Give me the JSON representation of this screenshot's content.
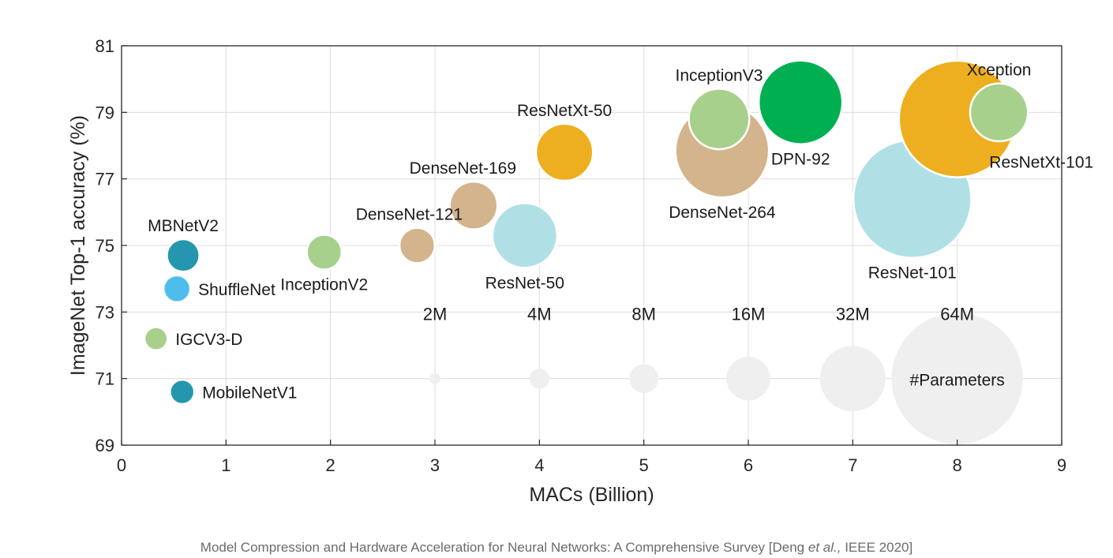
{
  "chart_data": {
    "type": "scatter",
    "subtype": "bubble",
    "xlabel": "MACs (Billion)",
    "ylabel": "ImageNet Top-1 accuracy (%)",
    "xlim": [
      0,
      9
    ],
    "ylim": [
      69,
      81
    ],
    "xticks": [
      0,
      1,
      2,
      3,
      4,
      5,
      6,
      7,
      8,
      9
    ],
    "yticks": [
      69,
      71,
      73,
      75,
      77,
      79,
      81
    ],
    "grid": true,
    "points": [
      {
        "name": "MBNetV2",
        "x": 0.59,
        "y": 74.7,
        "params_m": 3.4,
        "color": "#2497AE",
        "label_pos": "above"
      },
      {
        "name": "ShuffleNet",
        "x": 0.53,
        "y": 73.7,
        "params_m": 2.3,
        "color": "#4DBDEC",
        "label_pos": "right"
      },
      {
        "name": "IGCV3-D",
        "x": 0.33,
        "y": 72.2,
        "params_m": 1.7,
        "color": "#A8D08D",
        "label_pos": "right"
      },
      {
        "name": "MobileNetV1",
        "x": 0.58,
        "y": 70.6,
        "params_m": 1.9,
        "color": "#2497AE",
        "label_pos": "right"
      },
      {
        "name": "InceptionV2",
        "x": 1.94,
        "y": 74.8,
        "params_m": 3.9,
        "color": "#A8D08D",
        "label_pos": "below"
      },
      {
        "name": "DenseNet-121",
        "x": 2.83,
        "y": 75.0,
        "params_m": 4.0,
        "color": "#D4B48C",
        "label_pos": "above-left"
      },
      {
        "name": "DenseNet-169",
        "x": 3.37,
        "y": 76.2,
        "params_m": 7.3,
        "color": "#D4B48C",
        "label_pos": "above-left"
      },
      {
        "name": "ResNet-50",
        "x": 3.86,
        "y": 75.3,
        "params_m": 13.4,
        "color": "#B0E0E6",
        "label_pos": "below"
      },
      {
        "name": "ResNetXt-50",
        "x": 4.24,
        "y": 77.8,
        "params_m": 10.4,
        "color": "#EDAF20",
        "label_pos": "above"
      },
      {
        "name": "DenseNet-264",
        "x": 5.75,
        "y": 77.85,
        "params_m": 28.0,
        "color": "#D4B48C",
        "label_pos": "below"
      },
      {
        "name": "DPN-92",
        "x": 6.5,
        "y": 79.3,
        "params_m": 22.4,
        "color": "#00B050",
        "label_pos": "below"
      },
      {
        "name": "InceptionV3",
        "x": 5.72,
        "y": 78.8,
        "params_m": 11.7,
        "color": "#A8D08D",
        "label_pos": "above"
      },
      {
        "name": "ResNet-101",
        "x": 7.57,
        "y": 76.4,
        "params_m": 44.5,
        "color": "#B0E0E6",
        "label_pos": "below"
      },
      {
        "name": "ResNetXt-101",
        "x": 8.0,
        "y": 78.8,
        "params_m": 43.5,
        "color": "#EDAF20",
        "label_pos": "below-right"
      },
      {
        "name": "Xception",
        "x": 8.4,
        "y": 79.0,
        "params_m": 10.7,
        "color": "#A8D08D",
        "label_pos": "above"
      }
    ],
    "size_legend": {
      "title": "#Parameters",
      "y": 71,
      "color": "#EFEFEF",
      "items": [
        {
          "label": "2M",
          "x": 3,
          "params_m": 0.4
        },
        {
          "label": "4M",
          "x": 4,
          "params_m": 1.3
        },
        {
          "label": "8M",
          "x": 5,
          "params_m": 2.7
        },
        {
          "label": "16M",
          "x": 6,
          "params_m": 6.1
        },
        {
          "label": "32M",
          "x": 7,
          "params_m": 13.7
        },
        {
          "label": "64M",
          "x": 8,
          "params_m": 55.0
        }
      ]
    }
  },
  "caption": {
    "prefix": "Model Compression and Hardware Acceleration for Neural Networks: A Comprehensive Survey [Deng ",
    "etal": "et al.,",
    "suffix": " IEEE 2020]"
  }
}
